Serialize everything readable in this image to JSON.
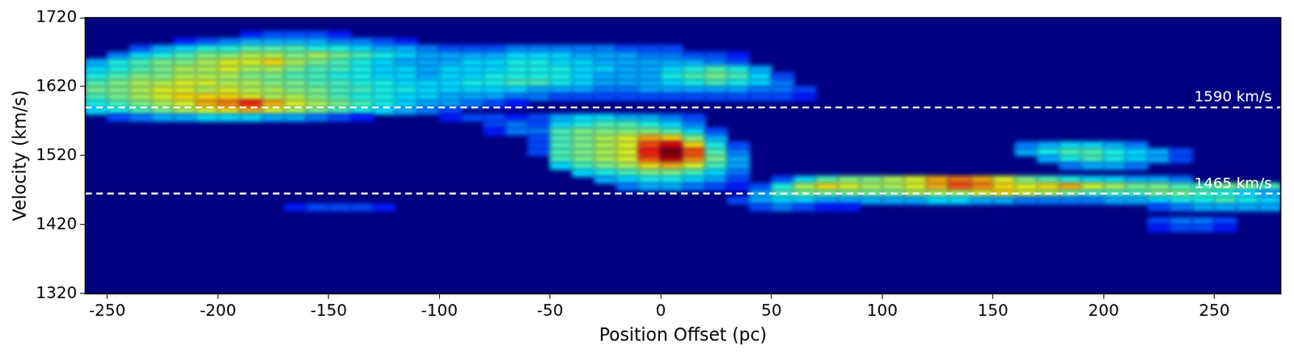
{
  "chart_data": {
    "type": "heatmap",
    "x_label": "Position Offset (pc)",
    "y_label": "Velocity (km/s)",
    "xlim": [
      -260,
      280
    ],
    "xticks": [
      -250,
      -200,
      -150,
      -100,
      -50,
      0,
      50,
      100,
      150,
      200,
      250
    ],
    "ylim": [
      1320,
      1720
    ],
    "yticks": [
      1320,
      1420,
      1520,
      1620,
      1720
    ],
    "grid": false,
    "heatmap": {
      "zlim": [
        0,
        1
      ],
      "cell_size": [
        10,
        10
      ],
      "rows": [
        {
          "velocity": 1695,
          "x_start": -185,
          "intensity": [
            0.15,
            0.2,
            0.2,
            0.2,
            0.15
          ]
        },
        {
          "velocity": 1685,
          "x_start": -215,
          "intensity": [
            0.15,
            0.2,
            0.25,
            0.3,
            0.3,
            0.3,
            0.3,
            0.25,
            0.25,
            0.2,
            0.15
          ]
        },
        {
          "velocity": 1675,
          "x_start": -235,
          "intensity": [
            0.2,
            0.3,
            0.35,
            0.4,
            0.4,
            0.45,
            0.45,
            0.45,
            0.4,
            0.4,
            0.35,
            0.3,
            0.3,
            0.25,
            0.2,
            0.2,
            0.2,
            0.25,
            0.25,
            0.25,
            0.25,
            0.25,
            0.2,
            0.2,
            0.2
          ]
        },
        {
          "velocity": 1665,
          "x_start": -245,
          "intensity": [
            0.25,
            0.35,
            0.4,
            0.45,
            0.5,
            0.5,
            0.55,
            0.55,
            0.5,
            0.55,
            0.5,
            0.45,
            0.4,
            0.35,
            0.3,
            0.3,
            0.3,
            0.3,
            0.35,
            0.35,
            0.35,
            0.3,
            0.3,
            0.3,
            0.25,
            0.25,
            0.2,
            0.2,
            0.15
          ]
        },
        {
          "velocity": 1655,
          "x_start": -255,
          "intensity": [
            0.3,
            0.4,
            0.45,
            0.5,
            0.5,
            0.55,
            0.6,
            0.6,
            0.65,
            0.55,
            0.5,
            0.45,
            0.4,
            0.35,
            0.3,
            0.3,
            0.3,
            0.35,
            0.35,
            0.4,
            0.4,
            0.35,
            0.35,
            0.3,
            0.3,
            0.3,
            0.3,
            0.3,
            0.25,
            0.2
          ]
        },
        {
          "velocity": 1645,
          "x_start": -255,
          "intensity": [
            0.35,
            0.4,
            0.45,
            0.5,
            0.55,
            0.55,
            0.6,
            0.55,
            0.55,
            0.5,
            0.45,
            0.45,
            0.4,
            0.35,
            0.35,
            0.3,
            0.35,
            0.35,
            0.35,
            0.4,
            0.4,
            0.4,
            0.35,
            0.35,
            0.3,
            0.3,
            0.35,
            0.4,
            0.45,
            0.4,
            0.3
          ]
        },
        {
          "velocity": 1635,
          "x_start": -255,
          "intensity": [
            0.4,
            0.45,
            0.5,
            0.5,
            0.55,
            0.55,
            0.55,
            0.5,
            0.5,
            0.45,
            0.45,
            0.4,
            0.4,
            0.35,
            0.35,
            0.3,
            0.35,
            0.35,
            0.4,
            0.4,
            0.4,
            0.4,
            0.35,
            0.3,
            0.3,
            0.3,
            0.4,
            0.45,
            0.5,
            0.45,
            0.35,
            0.2
          ]
        },
        {
          "velocity": 1625,
          "x_start": -255,
          "intensity": [
            0.45,
            0.5,
            0.55,
            0.55,
            0.6,
            0.6,
            0.55,
            0.55,
            0.5,
            0.5,
            0.45,
            0.45,
            0.4,
            0.4,
            0.35,
            0.35,
            0.35,
            0.4,
            0.4,
            0.45,
            0.45,
            0.4,
            0.35,
            0.3,
            0.3,
            0.3,
            0.35,
            0.4,
            0.45,
            0.4,
            0.35,
            0.25
          ]
        },
        {
          "velocity": 1615,
          "x_start": -255,
          "intensity": [
            0.5,
            0.5,
            0.55,
            0.6,
            0.6,
            0.55,
            0.6,
            0.55,
            0.55,
            0.5,
            0.5,
            0.45,
            0.45,
            0.4,
            0.4,
            0.35,
            0.35,
            0.35,
            0.35,
            0.35,
            0.3,
            0.3,
            0.3,
            0.25,
            0.25,
            0.3,
            0.3,
            0.3,
            0.3,
            0.3,
            0.25,
            0.25,
            0.2
          ]
        },
        {
          "velocity": 1605,
          "x_start": -255,
          "intensity": [
            0.45,
            0.5,
            0.55,
            0.6,
            0.65,
            0.65,
            0.65,
            0.6,
            0.55,
            0.55,
            0.5,
            0.45,
            0.4,
            0.4,
            0.35,
            0.35,
            0.3,
            0.3,
            0.3,
            0.25,
            0.25,
            0.2,
            0.2,
            0.2,
            0.2,
            0.2,
            0.2,
            0.2,
            0.2,
            0.2,
            0.2,
            0.2,
            0.15
          ]
        },
        {
          "velocity": 1595,
          "x_start": -255,
          "intensity": [
            0.4,
            0.45,
            0.5,
            0.55,
            0.6,
            0.7,
            0.75,
            0.85,
            0.7,
            0.6,
            0.55,
            0.5,
            0.45,
            0.4,
            0.35,
            0.3,
            0.3,
            0.25,
            0.2,
            0.15
          ]
        },
        {
          "velocity": 1585,
          "x_start": -255,
          "intensity": [
            0.35,
            0.4,
            0.45,
            0.5,
            0.55,
            0.6,
            0.65,
            0.7,
            0.6,
            0.55,
            0.5,
            0.45,
            0.4,
            0.35,
            0.3,
            0.25,
            0.2
          ]
        },
        {
          "velocity": 1575,
          "x_start": -245,
          "intensity": [
            0.2,
            0.25,
            0.3,
            0.3,
            0.35,
            0.35,
            0.35,
            0.3,
            0.3,
            0.25,
            0.2,
            0.15,
            0,
            0,
            0,
            0.15,
            0.2,
            0.2,
            0.15,
            0.2,
            0.3,
            0.35,
            0.35,
            0.3,
            0.3,
            0.25,
            0.2
          ]
        },
        {
          "velocity": 1565,
          "x_start": -75,
          "intensity": [
            0.2,
            0.25,
            0.2,
            0.35,
            0.4,
            0.45,
            0.45,
            0.4,
            0.35,
            0.25
          ]
        },
        {
          "velocity": 1555,
          "x_start": -75,
          "intensity": [
            0.15,
            0.25,
            0.25,
            0.45,
            0.5,
            0.5,
            0.5,
            0.5,
            0.45,
            0.35,
            0.2
          ]
        },
        {
          "velocity": 1545,
          "x_start": -55,
          "intensity": [
            0.2,
            0.45,
            0.5,
            0.55,
            0.6,
            0.7,
            0.65,
            0.5,
            0.3
          ]
        },
        {
          "velocity": 1535,
          "x_start": -55,
          "intensity": [
            0.2,
            0.45,
            0.5,
            0.55,
            0.6,
            0.8,
            0.9,
            0.65,
            0.4,
            0.2
          ]
        },
        {
          "velocity": 1535,
          "x_start": 165,
          "intensity": [
            0.25,
            0.3,
            0.35,
            0.35,
            0.3,
            0.25
          ]
        },
        {
          "velocity": 1525,
          "x_start": -55,
          "intensity": [
            0.2,
            0.45,
            0.5,
            0.55,
            0.6,
            0.85,
            1.0,
            0.8,
            0.45,
            0.25
          ]
        },
        {
          "velocity": 1525,
          "x_start": 165,
          "intensity": [
            0.3,
            0.4,
            0.45,
            0.45,
            0.4,
            0.35,
            0.3,
            0.2
          ]
        },
        {
          "velocity": 1515,
          "x_start": -45,
          "intensity": [
            0.45,
            0.5,
            0.55,
            0.6,
            0.8,
            0.95,
            0.75,
            0.5,
            0.3
          ]
        },
        {
          "velocity": 1515,
          "x_start": 175,
          "intensity": [
            0.3,
            0.4,
            0.45,
            0.4,
            0.35,
            0.3,
            0.2
          ]
        },
        {
          "velocity": 1505,
          "x_start": -45,
          "intensity": [
            0.35,
            0.45,
            0.5,
            0.55,
            0.65,
            0.7,
            0.6,
            0.45,
            0.3
          ]
        },
        {
          "velocity": 1505,
          "x_start": 185,
          "intensity": [
            0.25,
            0.3,
            0.3,
            0.25
          ]
        },
        {
          "velocity": 1495,
          "x_start": -35,
          "intensity": [
            0.35,
            0.4,
            0.45,
            0.5,
            0.5,
            0.45,
            0.35,
            0.25
          ]
        },
        {
          "velocity": 1485,
          "x_start": -25,
          "intensity": [
            0.3,
            0.35,
            0.4,
            0.4,
            0.35,
            0.3,
            0.2,
            0,
            0.2,
            0.35,
            0.45,
            0.5,
            0.5,
            0.55,
            0.6,
            0.7,
            0.75,
            0.7,
            0.6,
            0.5,
            0.45,
            0.4,
            0.35,
            0.35,
            0.3,
            0.3,
            0.25
          ]
        },
        {
          "velocity": 1475,
          "x_start": -15,
          "intensity": [
            0.25,
            0.3,
            0.3,
            0.25,
            0.2,
            0.15,
            0.2,
            0.4,
            0.55,
            0.65,
            0.6,
            0.55,
            0.55,
            0.6,
            0.7,
            0.8,
            0.75,
            0.65,
            0.6,
            0.65,
            0.7,
            0.6,
            0.55,
            0.5,
            0.5,
            0.45,
            0.45,
            0.5,
            0.5,
            0.45
          ]
        },
        {
          "velocity": 1465,
          "x_start": 45,
          "intensity": [
            0.3,
            0.45,
            0.5,
            0.5,
            0.5,
            0.5,
            0.5,
            0.55,
            0.55,
            0.55,
            0.6,
            0.65,
            0.6,
            0.55,
            0.5,
            0.45,
            0.45,
            0.45,
            0.5,
            0.5,
            0.45,
            0.4,
            0.35,
            0.3
          ]
        },
        {
          "velocity": 1455,
          "x_start": 35,
          "intensity": [
            0.2,
            0.3,
            0.35,
            0.35,
            0.3,
            0.3,
            0.3,
            0.3,
            0.3,
            0.35,
            0.35,
            0.3,
            0.3,
            0.25,
            0.25,
            0.25,
            0.25,
            0.3,
            0.3,
            0.35,
            0.4,
            0.4,
            0.45,
            0.4,
            0.35
          ]
        },
        {
          "velocity": 1445,
          "x_start": -165,
          "intensity": [
            0.15,
            0.2,
            0.2,
            0.2,
            0.15
          ]
        },
        {
          "velocity": 1445,
          "x_start": 45,
          "intensity": [
            0.2,
            0.25,
            0.2,
            0.15,
            0.15,
            0,
            0,
            0,
            0,
            0,
            0,
            0,
            0,
            0,
            0,
            0,
            0,
            0,
            0.2,
            0.25,
            0.3,
            0.3,
            0.3,
            0.3
          ]
        },
        {
          "velocity": 1425,
          "x_start": 225,
          "intensity": [
            0.2,
            0.25,
            0.25,
            0.2
          ]
        },
        {
          "velocity": 1415,
          "x_start": 225,
          "intensity": [
            0.15,
            0.2,
            0.2,
            0.15
          ]
        }
      ]
    },
    "annotations": [
      {
        "y": 1590,
        "text": "1590 km/s",
        "color": "#ffffff",
        "line_style": "dashed"
      },
      {
        "y": 1465,
        "text": "1465 km/s",
        "color": "#ffffff",
        "line_style": "dashed"
      }
    ]
  }
}
